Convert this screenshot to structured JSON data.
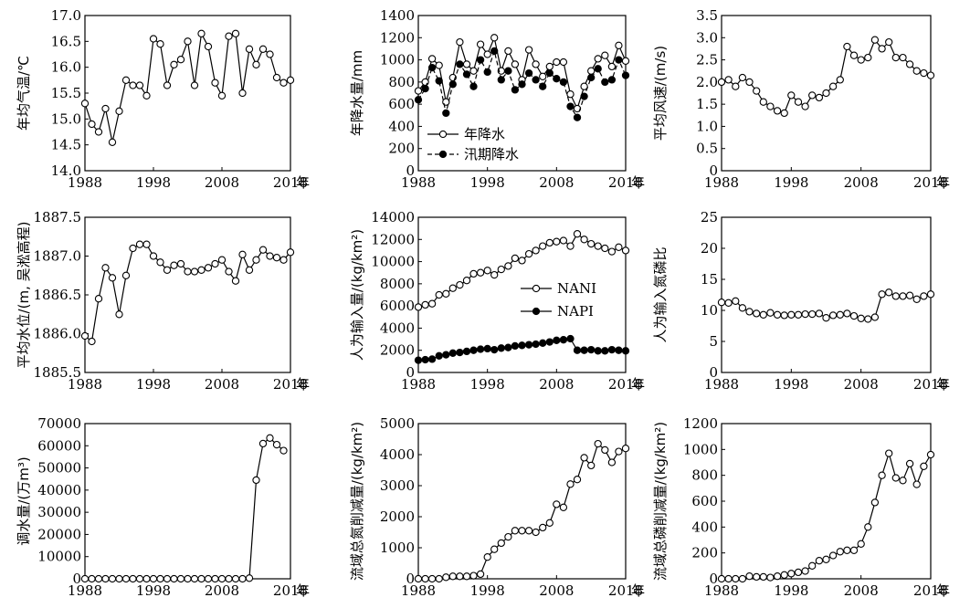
{
  "x_unit": "年",
  "chart_data": [
    {
      "type": "line",
      "ylabel": "年均气温/℃",
      "ylim": [
        14.0,
        17.0
      ],
      "yticks": [
        "14.0",
        "14.5",
        "15.0",
        "15.5",
        "16.0",
        "16.5",
        "17.0"
      ],
      "xlim": [
        1988,
        2018
      ],
      "xticks": [
        "1988",
        "1998",
        "2008",
        "2018"
      ],
      "x": [
        1988,
        1989,
        1990,
        1991,
        1992,
        1993,
        1994,
        1995,
        1996,
        1997,
        1998,
        1999,
        2000,
        2001,
        2002,
        2003,
        2004,
        2005,
        2006,
        2007,
        2008,
        2009,
        2010,
        2011,
        2012,
        2013,
        2014,
        2015,
        2016,
        2017,
        2018
      ],
      "series": [
        {
          "name": "",
          "marker": "open",
          "dash": false,
          "values": [
            15.3,
            14.9,
            14.75,
            15.2,
            14.55,
            15.15,
            15.75,
            15.65,
            15.65,
            15.45,
            16.55,
            16.45,
            15.65,
            16.05,
            16.15,
            16.5,
            15.65,
            16.65,
            16.4,
            15.7,
            15.45,
            16.6,
            16.65,
            15.5,
            16.35,
            16.05,
            16.35,
            16.25,
            15.8,
            15.7,
            15.75
          ]
        }
      ]
    },
    {
      "type": "line",
      "ylabel": "年降水量/mm",
      "ylim": [
        0,
        1400
      ],
      "yticks": [
        "0",
        "200",
        "400",
        "600",
        "800",
        "1000",
        "1200",
        "1400"
      ],
      "xlim": [
        1988,
        2018
      ],
      "xticks": [
        "1988",
        "1998",
        "2008",
        "2018"
      ],
      "x": [
        1988,
        1989,
        1990,
        1991,
        1992,
        1993,
        1994,
        1995,
        1996,
        1997,
        1998,
        1999,
        2000,
        2001,
        2002,
        2003,
        2004,
        2005,
        2006,
        2007,
        2008,
        2009,
        2010,
        2011,
        2012,
        2013,
        2014,
        2015,
        2016,
        2017,
        2018
      ],
      "legend": "center-left",
      "series": [
        {
          "name": "年降水",
          "marker": "open",
          "dash": false,
          "values": [
            720,
            800,
            1010,
            950,
            620,
            840,
            1160,
            960,
            900,
            1140,
            1050,
            1200,
            900,
            1080,
            960,
            820,
            1090,
            960,
            850,
            940,
            980,
            980,
            690,
            560,
            760,
            900,
            1010,
            1040,
            940,
            1130,
            990
          ]
        },
        {
          "name": "汛期降水",
          "marker": "filled",
          "dash": true,
          "values": [
            640,
            740,
            930,
            810,
            520,
            780,
            960,
            870,
            760,
            1000,
            890,
            1080,
            820,
            900,
            730,
            780,
            880,
            820,
            760,
            880,
            830,
            800,
            580,
            480,
            670,
            840,
            920,
            800,
            820,
            1000,
            860
          ]
        }
      ]
    },
    {
      "type": "line",
      "ylabel": "平均风速/(m/s)",
      "ylim": [
        0,
        3.5
      ],
      "yticks": [
        "0",
        "0.5",
        "1.0",
        "1.5",
        "2.0",
        "2.5",
        "3.0",
        "3.5"
      ],
      "xlim": [
        1988,
        2018
      ],
      "xticks": [
        "1988",
        "1998",
        "2008",
        "2018"
      ],
      "x": [
        1988,
        1989,
        1990,
        1991,
        1992,
        1993,
        1994,
        1995,
        1996,
        1997,
        1998,
        1999,
        2000,
        2001,
        2002,
        2003,
        2004,
        2005,
        2006,
        2007,
        2008,
        2009,
        2010,
        2011,
        2012,
        2013,
        2014,
        2015,
        2016,
        2017,
        2018
      ],
      "series": [
        {
          "name": "",
          "marker": "open",
          "dash": false,
          "values": [
            2.0,
            2.05,
            1.9,
            2.1,
            2.0,
            1.8,
            1.55,
            1.45,
            1.35,
            1.3,
            1.7,
            1.55,
            1.45,
            1.7,
            1.65,
            1.75,
            1.9,
            2.05,
            2.8,
            2.6,
            2.5,
            2.55,
            2.95,
            2.75,
            2.9,
            2.55,
            2.55,
            2.4,
            2.25,
            2.2,
            2.15
          ]
        }
      ]
    },
    {
      "type": "line",
      "ylabel": "平均水位/(m, 吴淞高程)",
      "ylim": [
        1885.5,
        1887.5
      ],
      "yticks": [
        "1885.5",
        "1886.0",
        "1886.5",
        "1887.0",
        "1887.5"
      ],
      "xlim": [
        1988,
        2018
      ],
      "xticks": [
        "1988",
        "1998",
        "2008",
        "2018"
      ],
      "x": [
        1988,
        1989,
        1990,
        1991,
        1992,
        1993,
        1994,
        1995,
        1996,
        1997,
        1998,
        1999,
        2000,
        2001,
        2002,
        2003,
        2004,
        2005,
        2006,
        2007,
        2008,
        2009,
        2010,
        2011,
        2012,
        2013,
        2014,
        2015,
        2016,
        2017,
        2018
      ],
      "series": [
        {
          "name": "",
          "marker": "open",
          "dash": false,
          "values": [
            1885.97,
            1885.9,
            1886.45,
            1886.85,
            1886.72,
            1886.25,
            1886.75,
            1887.1,
            1887.15,
            1887.15,
            1887.0,
            1886.92,
            1886.82,
            1886.88,
            1886.9,
            1886.8,
            1886.8,
            1886.82,
            1886.85,
            1886.9,
            1886.95,
            1886.8,
            1886.68,
            1887.02,
            1886.82,
            1886.95,
            1887.08,
            1887.0,
            1886.98,
            1886.95,
            1887.05
          ]
        }
      ]
    },
    {
      "type": "line",
      "ylabel": "人为输入量/(kg/km²)",
      "ylim": [
        0,
        14000
      ],
      "yticks": [
        "0",
        "2000",
        "4000",
        "6000",
        "8000",
        "10000",
        "12000",
        "14000"
      ],
      "xlim": [
        1988,
        2018
      ],
      "xticks": [
        "1988",
        "1998",
        "2008",
        "2018"
      ],
      "x": [
        1988,
        1989,
        1990,
        1991,
        1992,
        1993,
        1994,
        1995,
        1996,
        1997,
        1998,
        1999,
        2000,
        2001,
        2002,
        2003,
        2004,
        2005,
        2006,
        2007,
        2008,
        2009,
        2010,
        2011,
        2012,
        2013,
        2014,
        2015,
        2016,
        2017,
        2018
      ],
      "legend": "center-right",
      "series": [
        {
          "name": "NANI",
          "marker": "open",
          "dash": false,
          "values": [
            5900,
            6100,
            6200,
            7000,
            7100,
            7600,
            7900,
            8300,
            8900,
            9000,
            9200,
            8800,
            9300,
            9600,
            10300,
            10100,
            10700,
            11000,
            11400,
            11700,
            11800,
            11900,
            11400,
            12500,
            12000,
            11600,
            11400,
            11200,
            10900,
            11300,
            11000
          ]
        },
        {
          "name": "NAPI",
          "marker": "filled",
          "dash": false,
          "values": [
            1100,
            1150,
            1200,
            1500,
            1600,
            1750,
            1800,
            1900,
            2000,
            2100,
            2150,
            2050,
            2200,
            2250,
            2400,
            2450,
            2500,
            2550,
            2650,
            2750,
            2900,
            2950,
            3050,
            2000,
            2000,
            2050,
            1950,
            1950,
            2050,
            2000,
            1950
          ]
        }
      ]
    },
    {
      "type": "line",
      "ylabel": "人为输入氮磷比",
      "ylim": [
        0,
        25
      ],
      "yticks": [
        "0",
        "5",
        "10",
        "15",
        "20",
        "25"
      ],
      "xlim": [
        1988,
        2018
      ],
      "xticks": [
        "1988",
        "1998",
        "2008",
        "2018"
      ],
      "x": [
        1988,
        1989,
        1990,
        1991,
        1992,
        1993,
        1994,
        1995,
        1996,
        1997,
        1998,
        1999,
        2000,
        2001,
        2002,
        2003,
        2004,
        2005,
        2006,
        2007,
        2008,
        2009,
        2010,
        2011,
        2012,
        2013,
        2014,
        2015,
        2016,
        2017,
        2018
      ],
      "series": [
        {
          "name": "",
          "marker": "open",
          "dash": false,
          "values": [
            11.3,
            11.2,
            11.5,
            10.4,
            9.8,
            9.5,
            9.3,
            9.6,
            9.3,
            9.2,
            9.3,
            9.3,
            9.4,
            9.4,
            9.5,
            8.8,
            9.2,
            9.3,
            9.5,
            9.1,
            8.7,
            8.6,
            8.9,
            12.6,
            12.9,
            12.3,
            12.3,
            12.4,
            11.8,
            12.3,
            12.6
          ]
        }
      ]
    },
    {
      "type": "line",
      "ylabel": "调水量/(万m³)",
      "ylim": [
        0,
        70000
      ],
      "yticks": [
        "0",
        "10000",
        "20000",
        "30000",
        "40000",
        "50000",
        "60000",
        "70000"
      ],
      "xlim": [
        1988,
        2018
      ],
      "xticks": [
        "1988",
        "1998",
        "2008",
        "2018"
      ],
      "x": [
        1988,
        1989,
        1990,
        1991,
        1992,
        1993,
        1994,
        1995,
        1996,
        1997,
        1998,
        1999,
        2000,
        2001,
        2002,
        2003,
        2004,
        2005,
        2006,
        2007,
        2008,
        2009,
        2010,
        2011,
        2012,
        2013,
        2014,
        2015,
        2016,
        2017,
        2018
      ],
      "series": [
        {
          "name": "",
          "marker": "open",
          "dash": false,
          "values": [
            0,
            0,
            0,
            0,
            0,
            0,
            0,
            0,
            0,
            0,
            0,
            0,
            0,
            0,
            0,
            0,
            0,
            0,
            0,
            0,
            0,
            0,
            0,
            0,
            300,
            44500,
            61000,
            63500,
            60500,
            57800,
            null
          ]
        }
      ]
    },
    {
      "type": "line",
      "ylabel": "流域总氮削减量/(kg/km²)",
      "ylim": [
        0,
        5000
      ],
      "yticks": [
        "0",
        "1000",
        "2000",
        "3000",
        "4000",
        "5000"
      ],
      "xlim": [
        1988,
        2018
      ],
      "xticks": [
        "1988",
        "1998",
        "2008",
        "2018"
      ],
      "x": [
        1988,
        1989,
        1990,
        1991,
        1992,
        1993,
        1994,
        1995,
        1996,
        1997,
        1998,
        1999,
        2000,
        2001,
        2002,
        2003,
        2004,
        2005,
        2006,
        2007,
        2008,
        2009,
        2010,
        2011,
        2012,
        2013,
        2014,
        2015,
        2016,
        2017,
        2018
      ],
      "series": [
        {
          "name": "",
          "marker": "open",
          "dash": false,
          "values": [
            0,
            0,
            0,
            0,
            50,
            80,
            80,
            80,
            100,
            150,
            700,
            950,
            1150,
            1350,
            1550,
            1550,
            1550,
            1500,
            1650,
            1800,
            2400,
            2300,
            3050,
            3200,
            3900,
            3650,
            4350,
            4150,
            3750,
            4100,
            4200
          ]
        }
      ]
    },
    {
      "type": "line",
      "ylabel": "流域总磷削减量/(kg/km²)",
      "ylim": [
        0,
        1200
      ],
      "yticks": [
        "0",
        "200",
        "400",
        "600",
        "800",
        "1000",
        "1200"
      ],
      "xlim": [
        1988,
        2018
      ],
      "xticks": [
        "1988",
        "1998",
        "2008",
        "2018"
      ],
      "x": [
        1988,
        1989,
        1990,
        1991,
        1992,
        1993,
        1994,
        1995,
        1996,
        1997,
        1998,
        1999,
        2000,
        2001,
        2002,
        2003,
        2004,
        2005,
        2006,
        2007,
        2008,
        2009,
        2010,
        2011,
        2012,
        2013,
        2014,
        2015,
        2016,
        2017,
        2018
      ],
      "series": [
        {
          "name": "",
          "marker": "open",
          "dash": false,
          "values": [
            0,
            0,
            0,
            0,
            20,
            15,
            15,
            10,
            20,
            30,
            40,
            50,
            60,
            100,
            140,
            150,
            180,
            210,
            220,
            220,
            270,
            400,
            590,
            800,
            970,
            780,
            760,
            890,
            730,
            870,
            960
          ]
        }
      ]
    }
  ]
}
